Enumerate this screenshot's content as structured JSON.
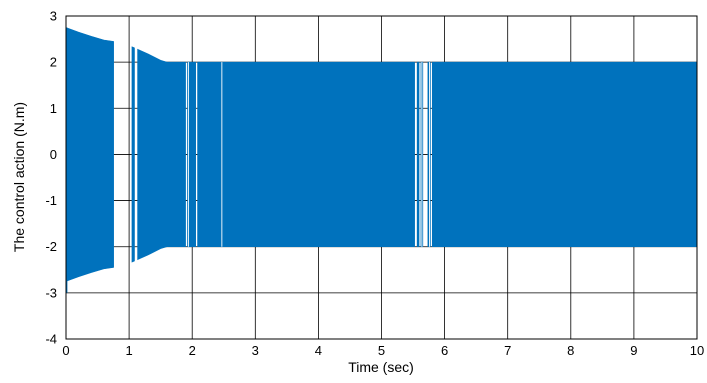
{
  "chart_data": {
    "type": "area",
    "title": "",
    "xlabel": "Time (sec)",
    "ylabel": "The control action (N.m)",
    "xlim": [
      0,
      10
    ],
    "ylim": [
      -4,
      3
    ],
    "x_ticks": [
      0,
      1,
      2,
      3,
      4,
      5,
      6,
      7,
      8,
      9,
      10
    ],
    "y_ticks": [
      -4,
      -3,
      -2,
      -1,
      0,
      1,
      2,
      3
    ],
    "grid": true,
    "series_color": "#0072BD",
    "series": [
      {
        "envelope_upper": {
          "x": [
            0,
            0.2,
            0.4,
            0.6,
            0.75,
            1.05,
            1.1,
            1.3,
            1.5,
            1.6,
            10
          ],
          "y": [
            2.75,
            2.65,
            2.56,
            2.48,
            2.45,
            2.33,
            2.3,
            2.18,
            2.04,
            2.0,
            2.0
          ]
        },
        "envelope_lower": {
          "x": [
            0,
            0.2,
            0.4,
            0.6,
            0.75,
            1.05,
            1.1,
            1.3,
            1.5,
            1.6,
            10
          ],
          "y": [
            -2.75,
            -2.65,
            -2.56,
            -2.48,
            -2.45,
            -2.33,
            -2.3,
            -2.18,
            -2.04,
            -2.0,
            -2.0
          ]
        },
        "start_spike_y": -3.0,
        "gaps": [
          [
            0.76,
            1.04
          ],
          [
            1.09,
            1.13
          ],
          [
            1.9,
            1.92
          ],
          [
            2.06,
            2.08
          ],
          [
            5.53,
            5.56
          ],
          [
            5.6,
            5.62
          ],
          [
            5.66,
            5.73
          ],
          [
            5.78,
            5.8
          ]
        ],
        "thin_lines": [
          1.94,
          2.47,
          5.64,
          5.76
        ]
      }
    ]
  }
}
